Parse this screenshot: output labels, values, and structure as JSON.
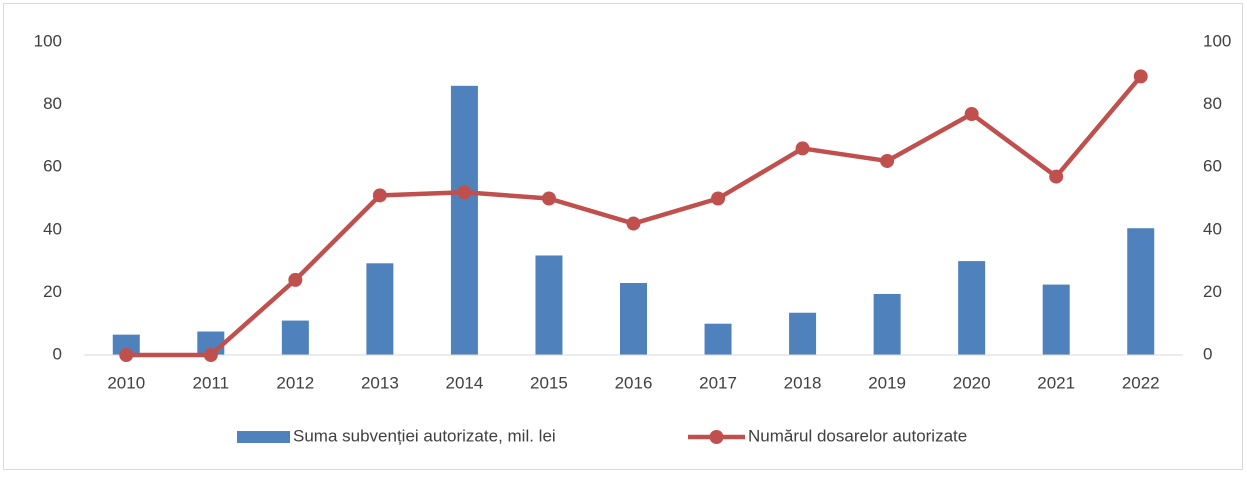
{
  "chart_data": {
    "type": "bar",
    "categories": [
      "2010",
      "2011",
      "2012",
      "2013",
      "2014",
      "2015",
      "2016",
      "2017",
      "2018",
      "2019",
      "2020",
      "2021",
      "2022"
    ],
    "series": [
      {
        "name": "Suma subvenției autorizate, mil. lei",
        "type": "bar",
        "color": "#4f81bd",
        "values": [
          6.5,
          7.5,
          11,
          29.3,
          86,
          31.8,
          23,
          10,
          13.5,
          19.5,
          30,
          22.5,
          40.5
        ]
      },
      {
        "name": "Numărul dosarelor autorizate",
        "type": "line",
        "axis": "y2",
        "color": "#c0504d",
        "values": [
          0,
          0,
          24,
          51,
          52,
          50,
          42,
          50,
          66,
          62,
          77,
          57,
          89
        ]
      }
    ],
    "ylim": [
      0,
      100
    ],
    "yticks": [
      0,
      20,
      40,
      60,
      80,
      100
    ],
    "y2lim": [
      0,
      100
    ],
    "y2ticks": [
      0,
      20,
      40,
      60,
      80,
      100
    ],
    "grid": false,
    "legend": "bottom"
  }
}
